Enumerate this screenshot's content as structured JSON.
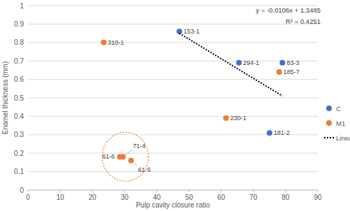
{
  "chart_data": {
    "type": "scatter",
    "xlabel": "Pulp cavity closure ratio",
    "ylabel": "Enamel thickness (mm)",
    "xlim": [
      0,
      90
    ],
    "xticks": [
      0,
      10,
      20,
      30,
      40,
      50,
      60,
      70,
      80,
      90
    ],
    "ylim": [
      0,
      1
    ],
    "yticks": [
      0,
      0.1,
      0.2,
      0.3,
      0.4,
      0.5,
      0.6,
      0.7,
      0.8,
      0.9,
      1
    ],
    "grid": true,
    "legend": "right",
    "annotations": [
      "y = -0.0106x + 1.3485",
      "R² = 0.4251"
    ],
    "series": [
      {
        "name": "C",
        "color": "#4472c4",
        "marker": "circle",
        "x": [
          47,
          65.5,
          79,
          75
        ],
        "values": [
          0.86,
          0.69,
          0.69,
          0.31
        ],
        "labels": [
          "153-1",
          "294-1",
          "83-3",
          "181-2"
        ]
      },
      {
        "name": "M1",
        "color": "#ed7d31",
        "marker": "circle",
        "x": [
          23.5,
          78,
          61.5,
          28.5,
          29.5,
          32
        ],
        "values": [
          0.8,
          0.64,
          0.39,
          0.18,
          0.18,
          0.16
        ],
        "labels": [
          "310-1",
          "185-7",
          "230-1",
          "61-6",
          "71-4",
          "61-5"
        ]
      },
      {
        "name": "Linear (C)",
        "type": "line",
        "line_style": "dotted",
        "color": "#000000",
        "x": [
          47,
          79
        ],
        "values": [
          0.85,
          0.51
        ]
      }
    ]
  }
}
